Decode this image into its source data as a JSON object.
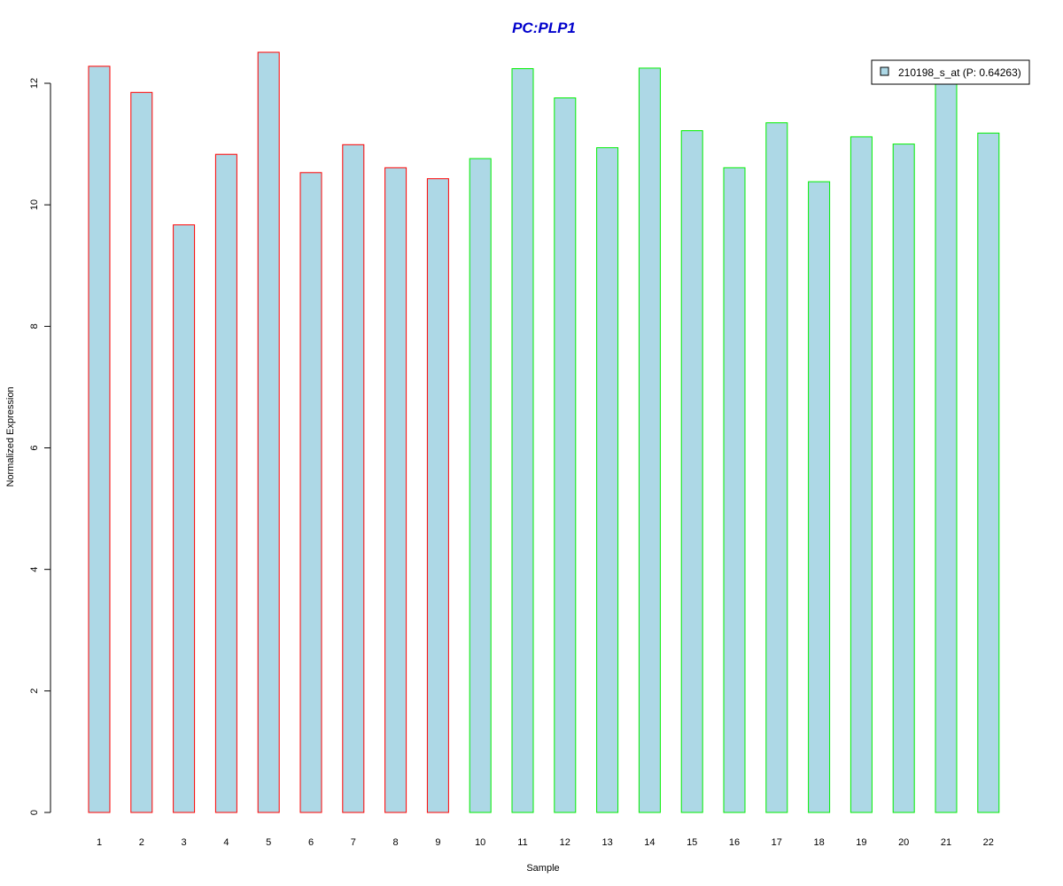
{
  "chart_data": {
    "type": "bar",
    "title": "PC:PLP1",
    "xlabel": "Sample",
    "ylabel": "Normalized Expression",
    "categories": [
      "1",
      "2",
      "3",
      "4",
      "5",
      "6",
      "7",
      "8",
      "9",
      "10",
      "11",
      "12",
      "13",
      "14",
      "15",
      "16",
      "17",
      "18",
      "19",
      "20",
      "21",
      "22"
    ],
    "series": [
      {
        "name": "210198_s_at (P: 0.64263)",
        "values": [
          12.28,
          11.85,
          9.67,
          10.83,
          12.51,
          10.53,
          10.99,
          10.61,
          10.43,
          10.76,
          12.24,
          11.76,
          10.94,
          12.25,
          11.22,
          10.61,
          11.35,
          10.38,
          11.12,
          11.0,
          12.05,
          11.18
        ]
      }
    ],
    "group_colors": [
      "#ff0000",
      "#ff0000",
      "#ff0000",
      "#ff0000",
      "#ff0000",
      "#ff0000",
      "#ff0000",
      "#ff0000",
      "#ff0000",
      "#00ee00",
      "#00ee00",
      "#00ee00",
      "#00ee00",
      "#00ee00",
      "#00ee00",
      "#00ee00",
      "#00ee00",
      "#00ee00",
      "#00ee00",
      "#00ee00",
      "#00ee00",
      "#00ee00"
    ],
    "bar_fill": "#add8e6",
    "title_color": "#0000cc",
    "ylim": [
      0,
      12.5
    ],
    "yticks": [
      0,
      2,
      4,
      6,
      8,
      10,
      12
    ],
    "grid": false,
    "legend_position": "top-right"
  }
}
